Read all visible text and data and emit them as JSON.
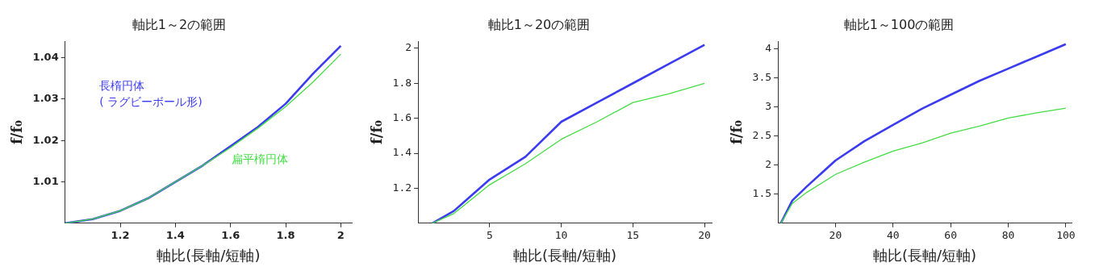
{
  "chart_data": [
    {
      "type": "line",
      "title": "軸比1～2の範囲",
      "xlabel": "軸比(長軸/短軸)",
      "ylabel": "f/f₀",
      "xlim": [
        1,
        2.04
      ],
      "ylim": [
        1,
        1.044
      ],
      "xticks": [
        1.2,
        1.4,
        1.6,
        1.8,
        2
      ],
      "yticks": [
        1.01,
        1.02,
        1.03,
        1.04
      ],
      "grid": false,
      "legend": false,
      "marker": "none",
      "line_style": "solid",
      "x": [
        1,
        1.1,
        1.2,
        1.3,
        1.4,
        1.5,
        1.6,
        1.7,
        1.8,
        1.9,
        2
      ],
      "series": [
        {
          "name": "長楕円体\n( ラグビーボール形)",
          "color": "#3b3bf0",
          "values": [
            1,
            1.001,
            1.003,
            1.006,
            1.01,
            1.014,
            1.0186,
            1.0233,
            1.0289,
            1.0362,
            1.0429
          ]
        },
        {
          "name": "扁平楕円体",
          "color": "#44dd44",
          "values": [
            1,
            1.001,
            1.003,
            1.006,
            1.01,
            1.014,
            1.0183,
            1.023,
            1.0282,
            1.0342,
            1.0409
          ]
        }
      ]
    },
    {
      "type": "line",
      "title": "軸比1～20の範囲",
      "xlabel": "軸比(長軸/短軸)",
      "ylabel": "f/f₀",
      "xlim": [
        0,
        20.5
      ],
      "ylim": [
        1,
        2.04
      ],
      "xticks": [
        5,
        10,
        15,
        20
      ],
      "yticks": [
        1.2,
        1.4,
        1.6,
        1.8,
        2
      ],
      "grid": false,
      "legend": false,
      "marker": "none",
      "line_style": "solid",
      "x": [
        1,
        2.5,
        5,
        7.5,
        10,
        12.5,
        15,
        17.5,
        20
      ],
      "series": [
        {
          "color": "#3b3bf0",
          "values": [
            1,
            1.07,
            1.25,
            1.38,
            1.58,
            1.69,
            1.8,
            1.91,
            2.02
          ]
        },
        {
          "color": "#44dd44",
          "values": [
            1,
            1.055,
            1.22,
            1.34,
            1.48,
            1.58,
            1.69,
            1.74,
            1.8
          ]
        }
      ]
    },
    {
      "type": "line",
      "title": "軸比1～100の範囲",
      "xlabel": "軸比(長軸/短軸)",
      "ylabel": "f/f₀",
      "xlim": [
        0,
        102
      ],
      "ylim": [
        1,
        4.13
      ],
      "xticks": [
        20,
        40,
        60,
        80,
        100
      ],
      "yticks": [
        1.5,
        2,
        2.5,
        3,
        3.5,
        4
      ],
      "grid": false,
      "legend": false,
      "marker": "none",
      "line_style": "solid",
      "x": [
        1,
        5,
        10,
        20,
        30,
        40,
        50,
        60,
        70,
        80,
        90,
        100
      ],
      "series": [
        {
          "color": "#3b3bf0",
          "values": [
            1,
            1.39,
            1.63,
            2.08,
            2.41,
            2.69,
            2.97,
            3.21,
            3.45,
            3.66,
            3.87,
            4.08
          ]
        },
        {
          "color": "#44dd44",
          "values": [
            1,
            1.34,
            1.53,
            1.84,
            2.05,
            2.24,
            2.38,
            2.55,
            2.67,
            2.81,
            2.9,
            2.98
          ]
        }
      ]
    }
  ]
}
